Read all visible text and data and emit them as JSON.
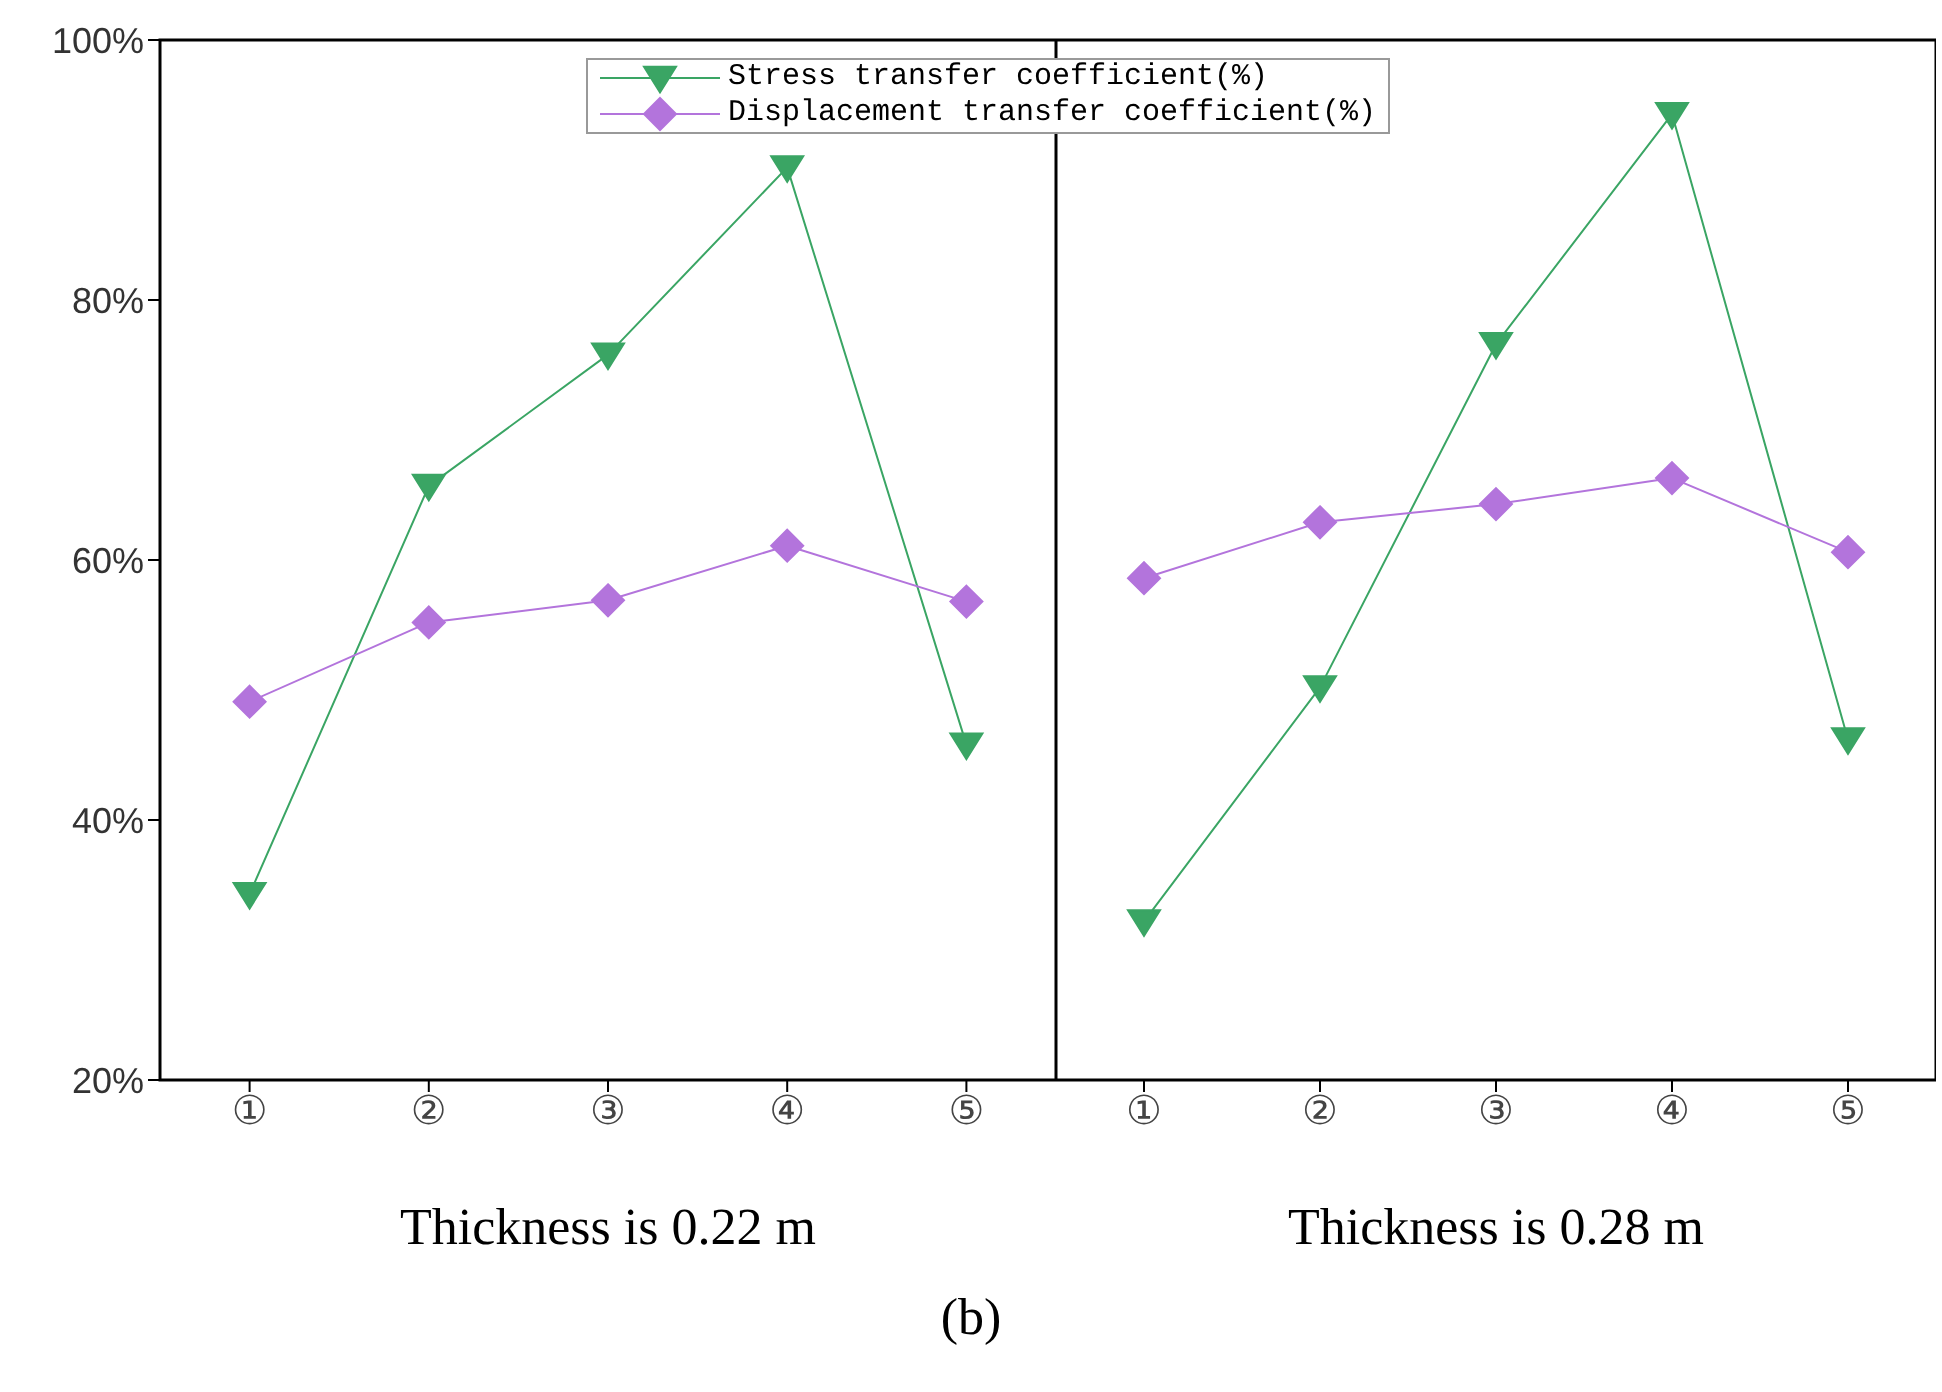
{
  "chart_data": [
    {
      "type": "line",
      "xlabel": "Thickness is 0.22 m",
      "categories": [
        "①",
        "②",
        "③",
        "④",
        "⑤"
      ],
      "ylim": [
        20,
        100
      ],
      "yticks": [
        {
          "value": 20,
          "label": "20%"
        },
        {
          "value": 40,
          "label": "40%"
        },
        {
          "value": 60,
          "label": "60%"
        },
        {
          "value": 80,
          "label": "80%"
        },
        {
          "value": 100,
          "label": "100%"
        }
      ],
      "legend": "top",
      "grid": false,
      "annotations": [
        "(b)"
      ],
      "series": [
        {
          "name": "Stress transfer coefficient(%)",
          "color": "#3aa564",
          "marker": "triangle",
          "values": [
            34.3,
            65.7,
            75.8,
            90.2,
            45.8
          ]
        },
        {
          "name": "Displacement transfer coefficient(%)",
          "color": "#b374dc",
          "marker": "diamond",
          "values": [
            49.1,
            55.2,
            56.9,
            61.1,
            56.8
          ]
        }
      ]
    },
    {
      "type": "line",
      "xlabel": "Thickness is 0.28 m",
      "categories": [
        "①",
        "②",
        "③",
        "④",
        "⑤"
      ],
      "ylim": [
        20,
        100
      ],
      "tick_labels": "x",
      "grid": false,
      "series": [
        {
          "color": "#3aa564",
          "marker": "triangle",
          "values": [
            32.2,
            50.2,
            76.6,
            94.3,
            46.2
          ]
        },
        {
          "color": "#b374dc",
          "marker": "diamond",
          "values": [
            58.6,
            62.9,
            64.3,
            66.3,
            60.6
          ]
        }
      ]
    }
  ]
}
